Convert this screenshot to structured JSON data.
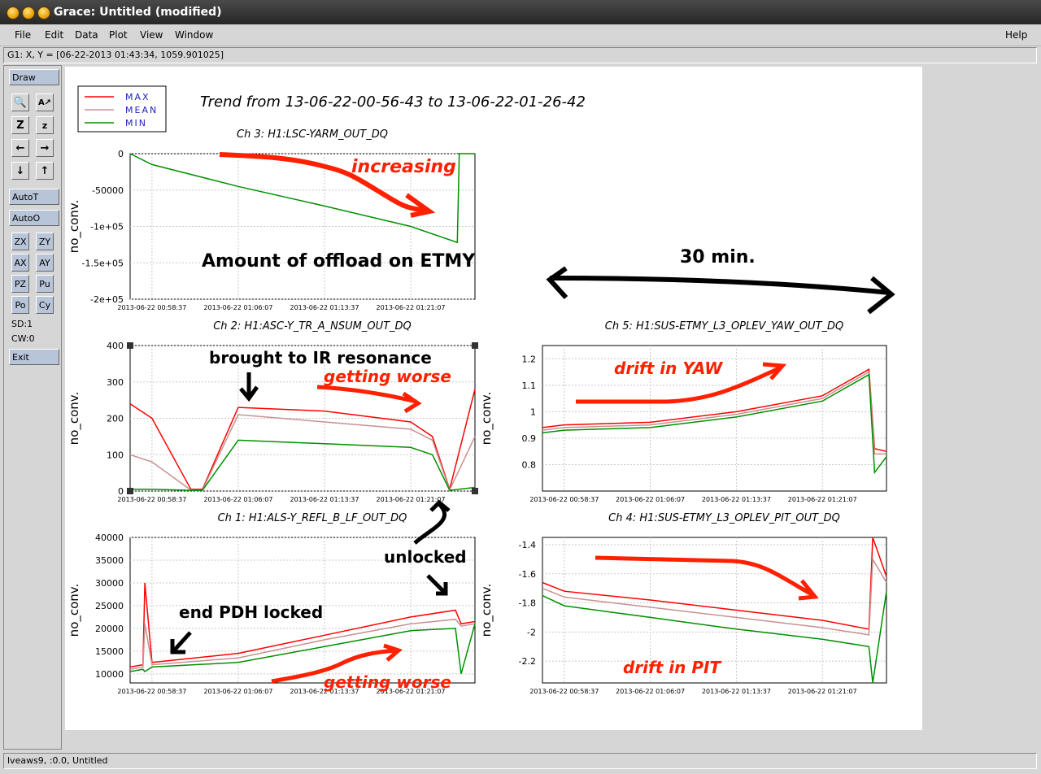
{
  "window": {
    "title": "Grace: Untitled (modified)"
  },
  "menu": [
    "File",
    "Edit",
    "Data",
    "Plot",
    "View",
    "Window"
  ],
  "help": "Help",
  "locator": "G1: X, Y = [06-22-2013 01:43:34, 1059.901025]",
  "status": "lveaws9, :0.0, Untitled",
  "toolbar": {
    "draw": "Draw",
    "autot": "AutoT",
    "autoo": "AutoO",
    "zx": "ZX",
    "zy": "ZY",
    "ax": "AX",
    "ay": "AY",
    "pz": "PZ",
    "pu": "Pu",
    "po": "Po",
    "cy": "Cy",
    "sd": "SD:1",
    "cw": "CW:0",
    "exit": "Exit"
  },
  "figure": {
    "main_title": "Trend from 13-06-22-00-56-43 to 13-06-22-01-26-42",
    "legend": [
      "MAX",
      "MEAN",
      "MIN"
    ],
    "series_colors": {
      "MAX": "#ff0000",
      "MEAN": "#c89090",
      "MIN": "#009000"
    },
    "xticks": [
      "2013-06-22 00:58:37",
      "2013-06-22 01:06:07",
      "2013-06-22 01:13:37",
      "2013-06-22 01:21:07"
    ],
    "ylabel": "no_conv."
  },
  "chart_data": [
    {
      "type": "line",
      "title": "Ch 3: H1:LSC-YARM_OUT_DQ",
      "ylabel": "no_conv.",
      "ylim": [
        -200000,
        0
      ],
      "yticks": [
        "0",
        "-50000",
        "-1e+05",
        "-1.5e+05",
        "-2e+05"
      ],
      "x": [
        "00:56:43",
        "00:58:37",
        "01:06:07",
        "01:13:37",
        "01:21:07",
        "01:25:10",
        "01:25:20",
        "01:26:42"
      ],
      "series": [
        {
          "name": "MIN",
          "values": [
            0,
            -15000,
            -45000,
            -72000,
            -100000,
            -122000,
            0,
            0
          ]
        }
      ]
    },
    {
      "type": "line",
      "title": "Ch 2: H1:ASC-Y_TR_A_NSUM_OUT_DQ",
      "ylabel": "no_conv.",
      "ylim": [
        0,
        400
      ],
      "yticks": [
        "400",
        "300",
        "200",
        "100",
        "0"
      ],
      "x": [
        "00:56:43",
        "00:58:37",
        "01:02:00",
        "01:03:00",
        "01:06:07",
        "01:13:37",
        "01:21:07",
        "01:23:00",
        "01:24:30",
        "01:26:42"
      ],
      "series": [
        {
          "name": "MAX",
          "values": [
            240,
            200,
            5,
            5,
            230,
            220,
            190,
            150,
            5,
            280
          ]
        },
        {
          "name": "MEAN",
          "values": [
            100,
            80,
            3,
            3,
            210,
            190,
            170,
            140,
            3,
            150
          ]
        },
        {
          "name": "MIN",
          "values": [
            5,
            5,
            2,
            2,
            140,
            130,
            120,
            100,
            2,
            10
          ]
        }
      ]
    },
    {
      "type": "line",
      "title": "Ch 5: H1:SUS-ETMY_L3_OPLEV_YAW_OUT_DQ",
      "ylabel": "no_conv.",
      "ylim": [
        0.7,
        1.25
      ],
      "yticks": [
        "1.2",
        "1.1",
        "1",
        "0.9",
        "0.8"
      ],
      "x": [
        "00:56:43",
        "00:58:37",
        "01:06:07",
        "01:13:37",
        "01:21:07",
        "01:25:10",
        "01:25:40",
        "01:26:42"
      ],
      "series": [
        {
          "name": "MAX",
          "values": [
            0.94,
            0.95,
            0.96,
            1.0,
            1.06,
            1.16,
            0.86,
            0.85
          ]
        },
        {
          "name": "MEAN",
          "values": [
            0.93,
            0.94,
            0.95,
            0.99,
            1.05,
            1.15,
            0.84,
            0.84
          ]
        },
        {
          "name": "MIN",
          "values": [
            0.92,
            0.93,
            0.94,
            0.98,
            1.04,
            1.14,
            0.77,
            0.83
          ]
        }
      ]
    },
    {
      "type": "line",
      "title": "Ch 1: H1:ALS-Y_REFL_B_LF_OUT_DQ",
      "ylabel": "no_conv.",
      "ylim": [
        8000,
        40000
      ],
      "yticks": [
        "40000",
        "35000",
        "30000",
        "25000",
        "20000",
        "15000",
        "10000"
      ],
      "x": [
        "00:56:43",
        "00:57:50",
        "00:58:00",
        "00:58:37",
        "01:06:07",
        "01:13:37",
        "01:21:07",
        "01:25:00",
        "01:25:30",
        "01:26:42"
      ],
      "series": [
        {
          "name": "MAX",
          "values": [
            11500,
            12000,
            30000,
            12500,
            14500,
            18500,
            22500,
            24000,
            21000,
            21500
          ]
        },
        {
          "name": "MEAN",
          "values": [
            11000,
            11500,
            21000,
            12000,
            13500,
            17500,
            21000,
            22000,
            20500,
            21000
          ]
        },
        {
          "name": "MIN",
          "values": [
            10500,
            11000,
            10500,
            11500,
            12500,
            16000,
            19500,
            20000,
            10000,
            21000
          ]
        }
      ]
    },
    {
      "type": "line",
      "title": "Ch 4: H1:SUS-ETMY_L3_OPLEV_PIT_OUT_DQ",
      "ylabel": "no_conv.",
      "ylim": [
        -2.35,
        -1.35
      ],
      "yticks": [
        "-1.4",
        "-1.6",
        "-1.8",
        "-2",
        "-2.2"
      ],
      "x": [
        "00:56:43",
        "00:58:37",
        "01:06:07",
        "01:13:37",
        "01:21:07",
        "01:25:10",
        "01:25:30",
        "01:26:42"
      ],
      "series": [
        {
          "name": "MAX",
          "values": [
            -1.66,
            -1.72,
            -1.78,
            -1.85,
            -1.92,
            -1.98,
            -1.35,
            -1.62
          ]
        },
        {
          "name": "MEAN",
          "values": [
            -1.7,
            -1.76,
            -1.83,
            -1.9,
            -1.97,
            -2.02,
            -1.5,
            -1.66
          ]
        },
        {
          "name": "MIN",
          "values": [
            -1.75,
            -1.82,
            -1.9,
            -1.98,
            -2.05,
            -2.1,
            -2.35,
            -1.72
          ]
        }
      ]
    }
  ],
  "annotations": {
    "increasing": "increasing",
    "offload": "Amount of offload on ETMY",
    "thirty_min": "30 min.",
    "brought": "brought to IR resonance",
    "worse1": "getting worse",
    "drift_yaw": "drift in YAW",
    "unlocked": "unlocked",
    "pdh": "end PDH locked",
    "worse2": "getting worse",
    "drift_pit": "drift in PIT"
  }
}
